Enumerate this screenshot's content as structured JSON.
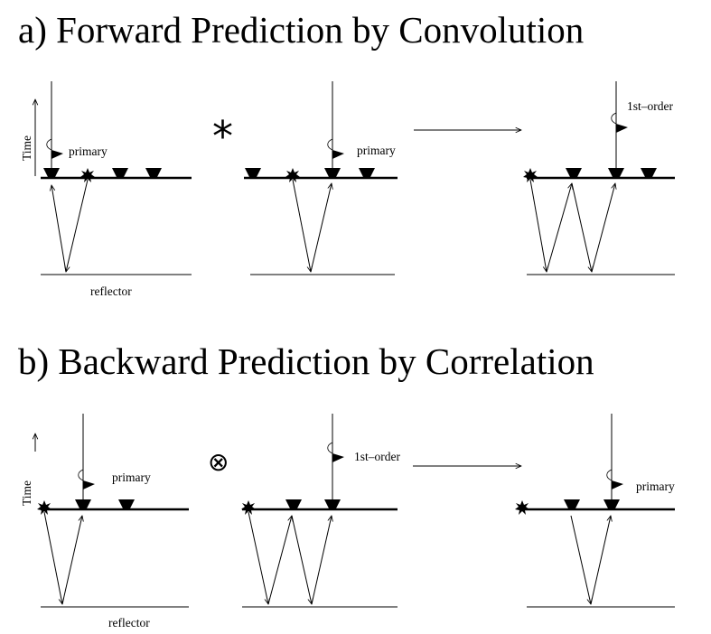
{
  "titles": {
    "a": "a) Forward Prediction by Convolution",
    "b": "b) Backward Prediction by Correlation"
  },
  "labels": {
    "time": "Time",
    "primary": "primary",
    "first_order": "1st–order",
    "reflector": "reflector"
  },
  "operators": {
    "convolution": "*",
    "correlation": "⊗"
  },
  "icons": {
    "receiver": "receiver-icon",
    "source": "source-starburst-icon",
    "wavelet": "flag-wavelet-icon",
    "arrow": "right-arrow-icon"
  }
}
